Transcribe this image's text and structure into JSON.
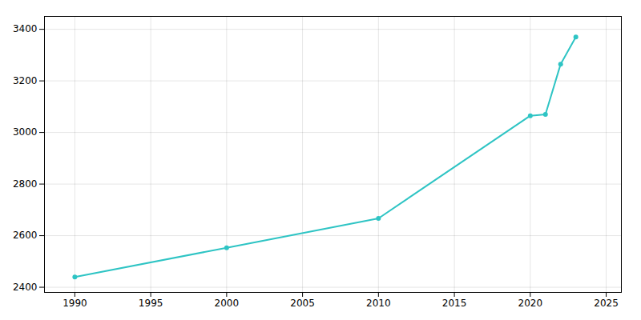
{
  "chart_data": {
    "type": "line",
    "x": [
      1990,
      2000,
      2010,
      2020,
      2021,
      2022,
      2023
    ],
    "values": [
      2440,
      2553,
      2667,
      3065,
      3070,
      3265,
      3370
    ],
    "color": "#2EC4C4",
    "marker": "circle",
    "xlim": [
      1988,
      2026
    ],
    "ylim": [
      2380,
      3450
    ],
    "xticks": [
      1990,
      1995,
      2000,
      2005,
      2010,
      2015,
      2020,
      2025
    ],
    "yticks": [
      2400,
      2600,
      2800,
      3000,
      3200,
      3400
    ],
    "grid": true
  }
}
